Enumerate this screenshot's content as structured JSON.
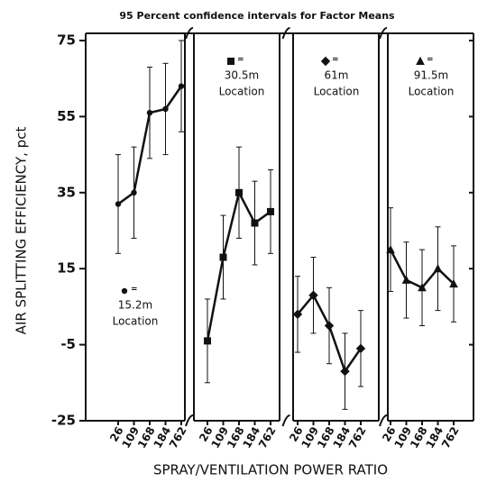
{
  "chart_data": {
    "type": "line",
    "title": "95 Percent confidence intervals for Factor Means",
    "ylabel": "AIR SPLITTING EFFICIENCY, pct",
    "xlabel": "SPRAY/VENTILATION POWER RATIO",
    "categories": [
      "26",
      "109",
      "168",
      "184",
      "762"
    ],
    "ylim": [
      -25,
      75
    ],
    "yticks": [
      75,
      55,
      35,
      15,
      -5,
      -25
    ],
    "legend_separator": "=",
    "series": [
      {
        "name": "15.2m",
        "caption": "Location",
        "marker": "circle",
        "color": "#111",
        "values": [
          32,
          35,
          56,
          57,
          63
        ],
        "errors": [
          13,
          12,
          12,
          12,
          12
        ]
      },
      {
        "name": "30.5m",
        "caption": "Location",
        "marker": "square",
        "color": "#111",
        "values": [
          -4,
          18,
          35,
          27,
          30
        ],
        "errors": [
          11,
          11,
          12,
          11,
          11
        ]
      },
      {
        "name": "61m",
        "caption": "Location",
        "marker": "diamond",
        "color": "#111",
        "values": [
          3,
          8,
          0,
          -12,
          -6
        ],
        "errors": [
          10,
          10,
          10,
          10,
          10
        ]
      },
      {
        "name": "91.5m",
        "caption": "Location",
        "marker": "triangle",
        "color": "#111",
        "values": [
          20,
          12,
          10,
          15,
          11
        ],
        "errors": [
          11,
          10,
          10,
          11,
          10
        ]
      }
    ]
  }
}
